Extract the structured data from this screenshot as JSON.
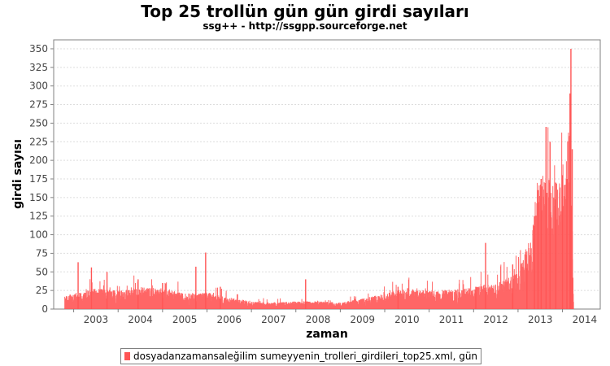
{
  "title": "Top 25 trollün gün gün girdi sayıları",
  "subtitle": "ssg++ - http://ssgpp.sourceforge.net",
  "chart_data": {
    "type": "bar",
    "xlabel": "zaman",
    "ylabel": "girdi sayısı",
    "xlim": [
      2002.55,
      2014.85
    ],
    "ylim": [
      0,
      362
    ],
    "x_ticks": [
      "2003",
      "2004",
      "2005",
      "2006",
      "2007",
      "2008",
      "2009",
      "2010",
      "2011",
      "2012",
      "2013",
      "2014"
    ],
    "y_ticks": [
      0,
      25,
      50,
      75,
      100,
      125,
      150,
      175,
      200,
      225,
      250,
      275,
      300,
      325,
      350
    ],
    "grid": true,
    "color": "#ff5555",
    "series": [
      {
        "name": "dosyadanzamansaleğilim sumeyyenin_trolleri_girdileri_top25.xml, gün",
        "resolution": "daily, summarized by period",
        "baseline_by_year": [
          {
            "x": 2002.8,
            "y": 10
          },
          {
            "x": 2003.0,
            "y": 12
          },
          {
            "x": 2003.5,
            "y": 16
          },
          {
            "x": 2004.0,
            "y": 14
          },
          {
            "x": 2004.5,
            "y": 17
          },
          {
            "x": 2005.0,
            "y": 16
          },
          {
            "x": 2005.5,
            "y": 12
          },
          {
            "x": 2006.0,
            "y": 13
          },
          {
            "x": 2006.5,
            "y": 9
          },
          {
            "x": 2007.0,
            "y": 6
          },
          {
            "x": 2007.5,
            "y": 5
          },
          {
            "x": 2008.0,
            "y": 6
          },
          {
            "x": 2008.5,
            "y": 6
          },
          {
            "x": 2009.0,
            "y": 5
          },
          {
            "x": 2009.5,
            "y": 8
          },
          {
            "x": 2010.0,
            "y": 12
          },
          {
            "x": 2010.5,
            "y": 16
          },
          {
            "x": 2011.0,
            "y": 14
          },
          {
            "x": 2011.5,
            "y": 15
          },
          {
            "x": 2012.0,
            "y": 17
          },
          {
            "x": 2012.5,
            "y": 20
          },
          {
            "x": 2013.0,
            "y": 28
          },
          {
            "x": 2013.3,
            "y": 60
          },
          {
            "x": 2013.55,
            "y": 110
          },
          {
            "x": 2013.8,
            "y": 95
          },
          {
            "x": 2014.0,
            "y": 100
          },
          {
            "x": 2014.18,
            "y": 150
          },
          {
            "x": 2014.25,
            "y": 10
          }
        ],
        "peaks": [
          {
            "x": 2003.1,
            "y": 63
          },
          {
            "x": 2003.4,
            "y": 56
          },
          {
            "x": 2003.75,
            "y": 50
          },
          {
            "x": 2004.45,
            "y": 40
          },
          {
            "x": 2005.0,
            "y": 35
          },
          {
            "x": 2005.75,
            "y": 57
          },
          {
            "x": 2005.97,
            "y": 76
          },
          {
            "x": 2006.3,
            "y": 30
          },
          {
            "x": 2008.22,
            "y": 40
          },
          {
            "x": 2010.3,
            "y": 30
          },
          {
            "x": 2012.05,
            "y": 30
          },
          {
            "x": 2012.27,
            "y": 89
          },
          {
            "x": 2012.88,
            "y": 60
          },
          {
            "x": 2013.2,
            "y": 55
          },
          {
            "x": 2013.37,
            "y": 125
          },
          {
            "x": 2013.45,
            "y": 160
          },
          {
            "x": 2013.52,
            "y": 175
          },
          {
            "x": 2013.63,
            "y": 245
          },
          {
            "x": 2013.72,
            "y": 225
          },
          {
            "x": 2013.85,
            "y": 170
          },
          {
            "x": 2014.0,
            "y": 180
          },
          {
            "x": 2014.1,
            "y": 175
          },
          {
            "x": 2014.17,
            "y": 290
          },
          {
            "x": 2014.19,
            "y": 350
          },
          {
            "x": 2014.22,
            "y": 215
          }
        ],
        "end": 2014.25
      }
    ],
    "legend": "bottom"
  }
}
